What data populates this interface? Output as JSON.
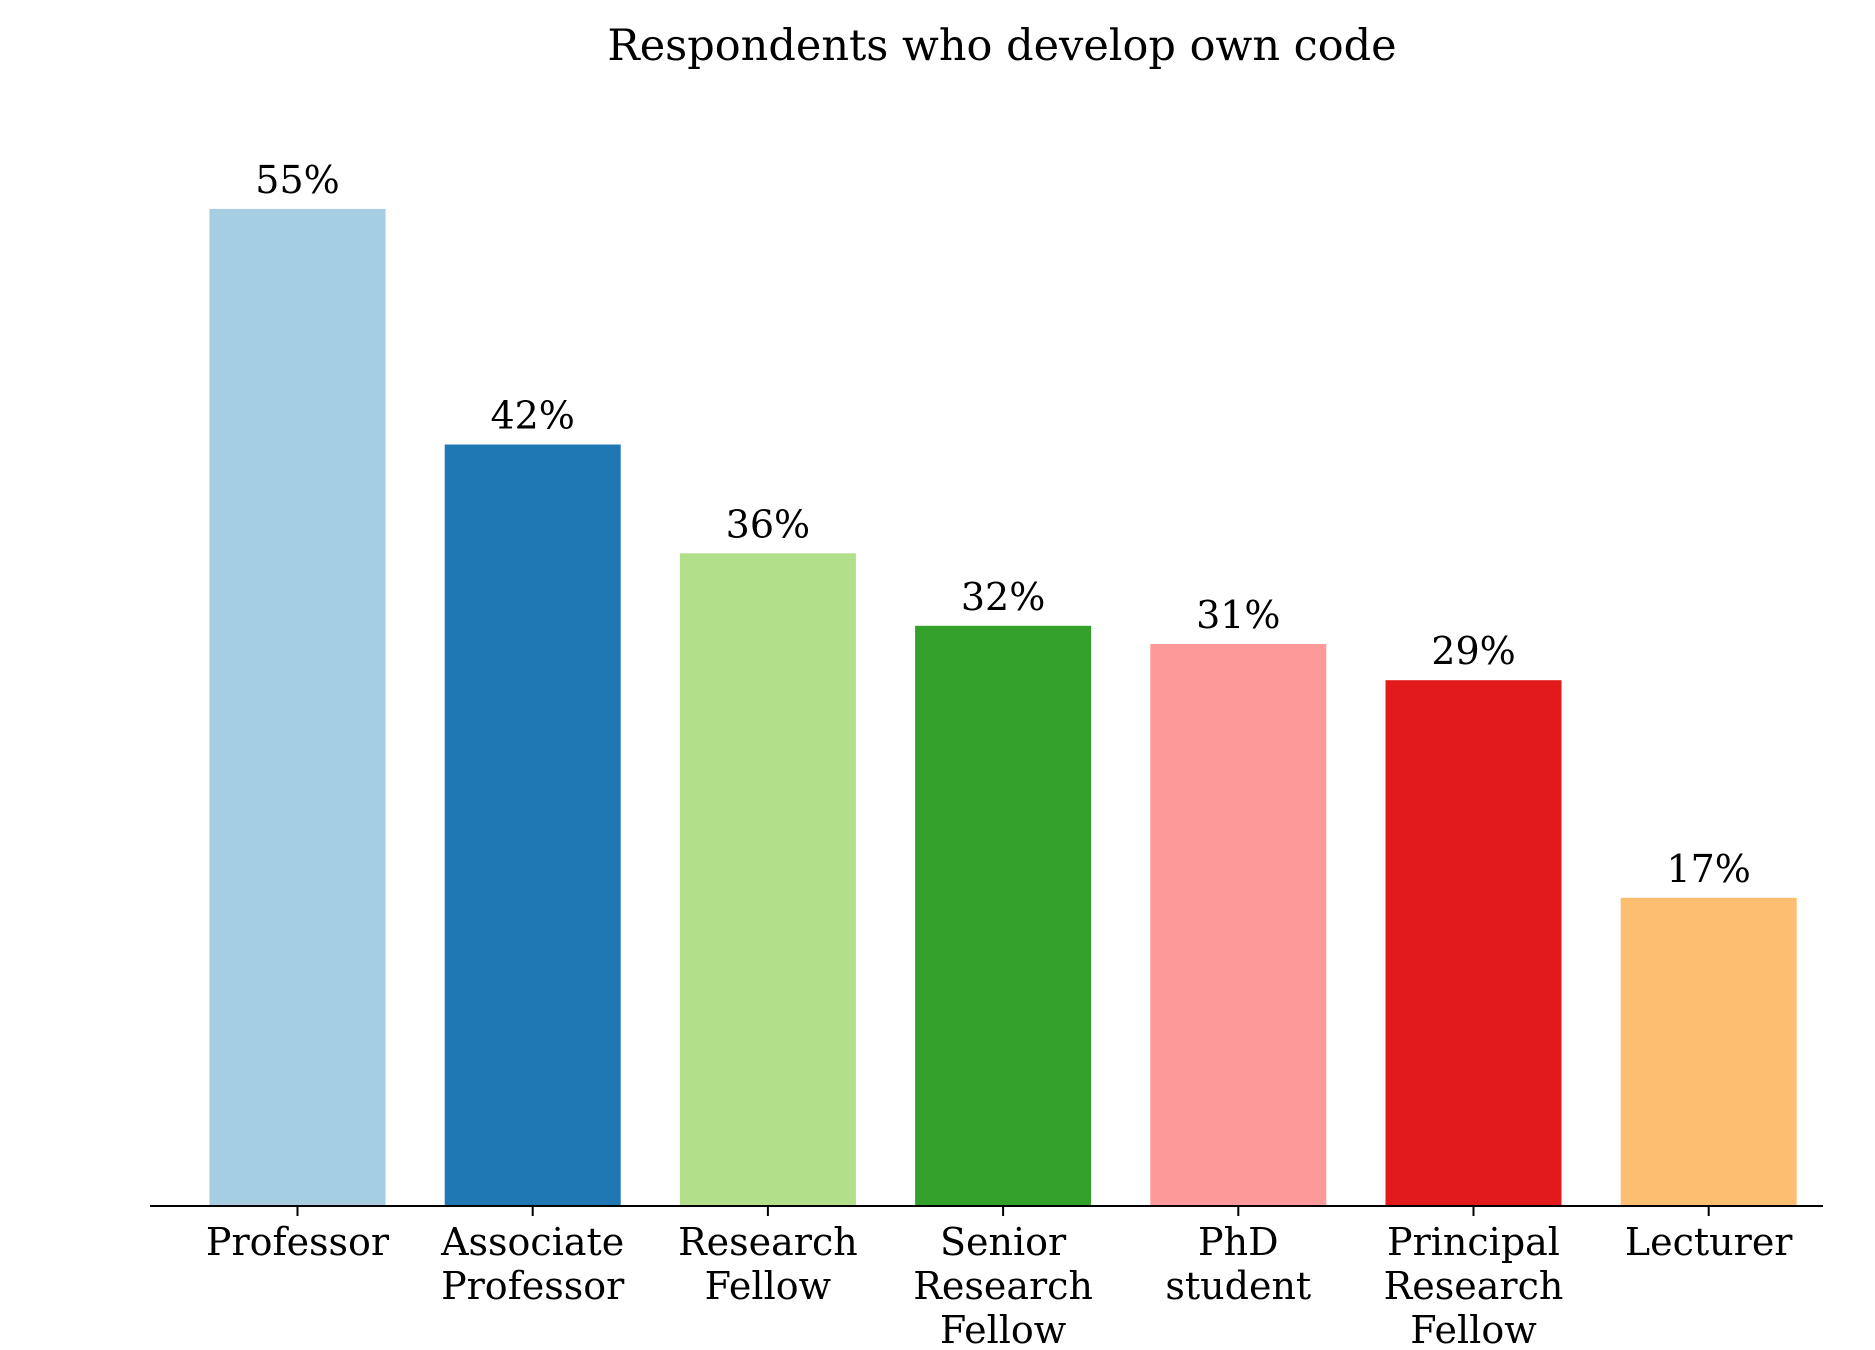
{
  "chart_data": {
    "type": "bar",
    "title": "Respondents who develop own code",
    "xlabel": "",
    "ylabel": "",
    "ylim": [
      0,
      60
    ],
    "grid": false,
    "categories": [
      "Professor",
      "Associate Professor",
      "Research Fellow",
      "Senior Research Fellow",
      "PhD student",
      "Principal Research Fellow",
      "Lecturer"
    ],
    "category_lines": [
      [
        "Professor"
      ],
      [
        "Associate",
        "Professor"
      ],
      [
        "Research",
        "Fellow"
      ],
      [
        "Senior",
        "Research",
        "Fellow"
      ],
      [
        "PhD",
        "student"
      ],
      [
        "Principal",
        "Research",
        "Fellow"
      ],
      [
        "Lecturer"
      ]
    ],
    "values": [
      55,
      42,
      36,
      32,
      31,
      29,
      17
    ],
    "value_labels": [
      "55%",
      "42%",
      "36%",
      "32%",
      "31%",
      "29%",
      "17%"
    ],
    "colors": [
      "#a6cee3",
      "#1f78b4",
      "#b2df8a",
      "#33a02c",
      "#fb9a99",
      "#e31a1c",
      "#fdbf6f"
    ]
  }
}
